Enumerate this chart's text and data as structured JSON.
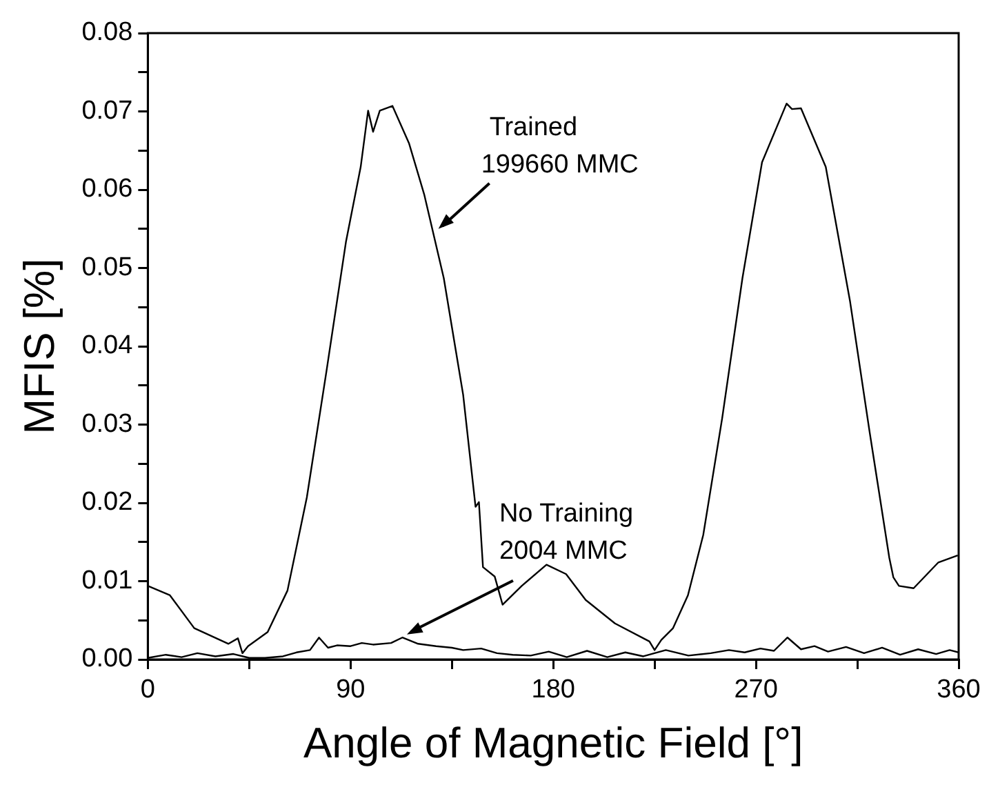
{
  "chart_data": {
    "type": "line",
    "xlabel": "Angle of Magnetic Field [°]",
    "ylabel": "MFIS [%]",
    "xlim": [
      0,
      360
    ],
    "ylim": [
      0,
      0.08
    ],
    "xticks": [
      0,
      {
        "value": 45,
        "label": null
      },
      90,
      {
        "value": 135,
        "label": null
      },
      180,
      {
        "value": 225,
        "label": null
      },
      270,
      {
        "value": 315,
        "label": null
      },
      360
    ],
    "yticks": [
      {
        "value": 0,
        "label": "0.00"
      },
      {
        "value": 0.005,
        "label": null
      },
      {
        "value": 0.01,
        "label": "0.01"
      },
      {
        "value": 0.015,
        "label": null
      },
      {
        "value": 0.02,
        "label": "0.02"
      },
      {
        "value": 0.025,
        "label": null
      },
      {
        "value": 0.03,
        "label": "0.03"
      },
      {
        "value": 0.035,
        "label": null
      },
      {
        "value": 0.04,
        "label": "0.04"
      },
      {
        "value": 0.045,
        "label": null
      },
      {
        "value": 0.05,
        "label": "0.05"
      },
      {
        "value": 0.055,
        "label": null
      },
      {
        "value": 0.06,
        "label": "0.06"
      },
      {
        "value": 0.065,
        "label": null
      },
      {
        "value": 0.07,
        "label": "0.07"
      },
      {
        "value": 0.075,
        "label": null
      },
      {
        "value": 0.08,
        "label": "0.08"
      }
    ],
    "grid": false,
    "legend": false,
    "marker": "none",
    "line_style": "solid",
    "series": [
      {
        "color": "#000000",
        "x": [
          0,
          9.8,
          20.6,
          35.8,
          40,
          42,
          44.5,
          53.2,
          62,
          70.6,
          79.3,
          88,
          94.5,
          97.8,
          100,
          103,
          108.6,
          116,
          122.7,
          131.4,
          140,
          145.5,
          147,
          148.8,
          154,
          157.5,
          166,
          177,
          185.7,
          194.4,
          207.4,
          222.7,
          225,
          228,
          233.2,
          239.8,
          246.6,
          255,
          264,
          272.7,
          283.6,
          286,
          290,
          301,
          311.8,
          320.5,
          329.2,
          331,
          333.5,
          340,
          351,
          359.6
        ],
        "values": [
          0.0094,
          0.0082,
          0.004,
          0.002,
          0.0027,
          0.0008,
          0.0017,
          0.0035,
          0.0088,
          0.0207,
          0.0368,
          0.0534,
          0.0629,
          0.0701,
          0.0674,
          0.0701,
          0.0707,
          0.0659,
          0.0594,
          0.0487,
          0.0338,
          0.0195,
          0.0201,
          0.0118,
          0.0106,
          0.007,
          0.0094,
          0.0121,
          0.0109,
          0.0076,
          0.0046,
          0.0023,
          0.0012,
          0.0025,
          0.004,
          0.0082,
          0.0159,
          0.0308,
          0.0487,
          0.0635,
          0.071,
          0.0703,
          0.0704,
          0.0629,
          0.0457,
          0.029,
          0.013,
          0.0105,
          0.0094,
          0.0091,
          0.0124,
          0.0133
        ]
      },
      {
        "color": "#000000",
        "x": [
          0,
          8,
          15,
          22,
          30,
          38,
          45,
          52,
          60,
          66,
          72,
          76,
          80,
          84,
          90,
          95,
          100,
          108,
          113,
          120,
          128,
          135,
          140,
          148,
          155,
          162,
          170,
          178,
          186,
          195,
          204,
          212,
          220,
          230,
          240,
          250,
          258,
          265,
          272,
          278,
          284,
          290,
          296,
          302,
          310,
          318,
          326,
          334,
          342,
          350,
          356,
          360
        ],
        "values": [
          0.0002,
          0.0006,
          0.0003,
          0.0008,
          0.0004,
          0.0007,
          0.0002,
          0.0002,
          0.0004,
          0.0009,
          0.0012,
          0.0028,
          0.0015,
          0.0018,
          0.0017,
          0.0021,
          0.0019,
          0.0021,
          0.0028,
          0.002,
          0.0017,
          0.0015,
          0.0012,
          0.0014,
          0.0008,
          0.0006,
          0.0005,
          0.001,
          0.0003,
          0.0011,
          0.0003,
          0.0009,
          0.0004,
          0.0012,
          0.0005,
          0.0008,
          0.0012,
          0.0009,
          0.0014,
          0.0011,
          0.0028,
          0.0013,
          0.0017,
          0.001,
          0.0016,
          0.0008,
          0.0015,
          0.0006,
          0.0013,
          0.0007,
          0.0012,
          0.0009
        ]
      }
    ],
    "annotations": [
      {
        "text": "Trained\n199660 MMC",
        "x": 129,
        "y": 0.055
      },
      {
        "text": "No Training\n2004 MMC",
        "x": 115,
        "y": 0.0032
      }
    ]
  }
}
